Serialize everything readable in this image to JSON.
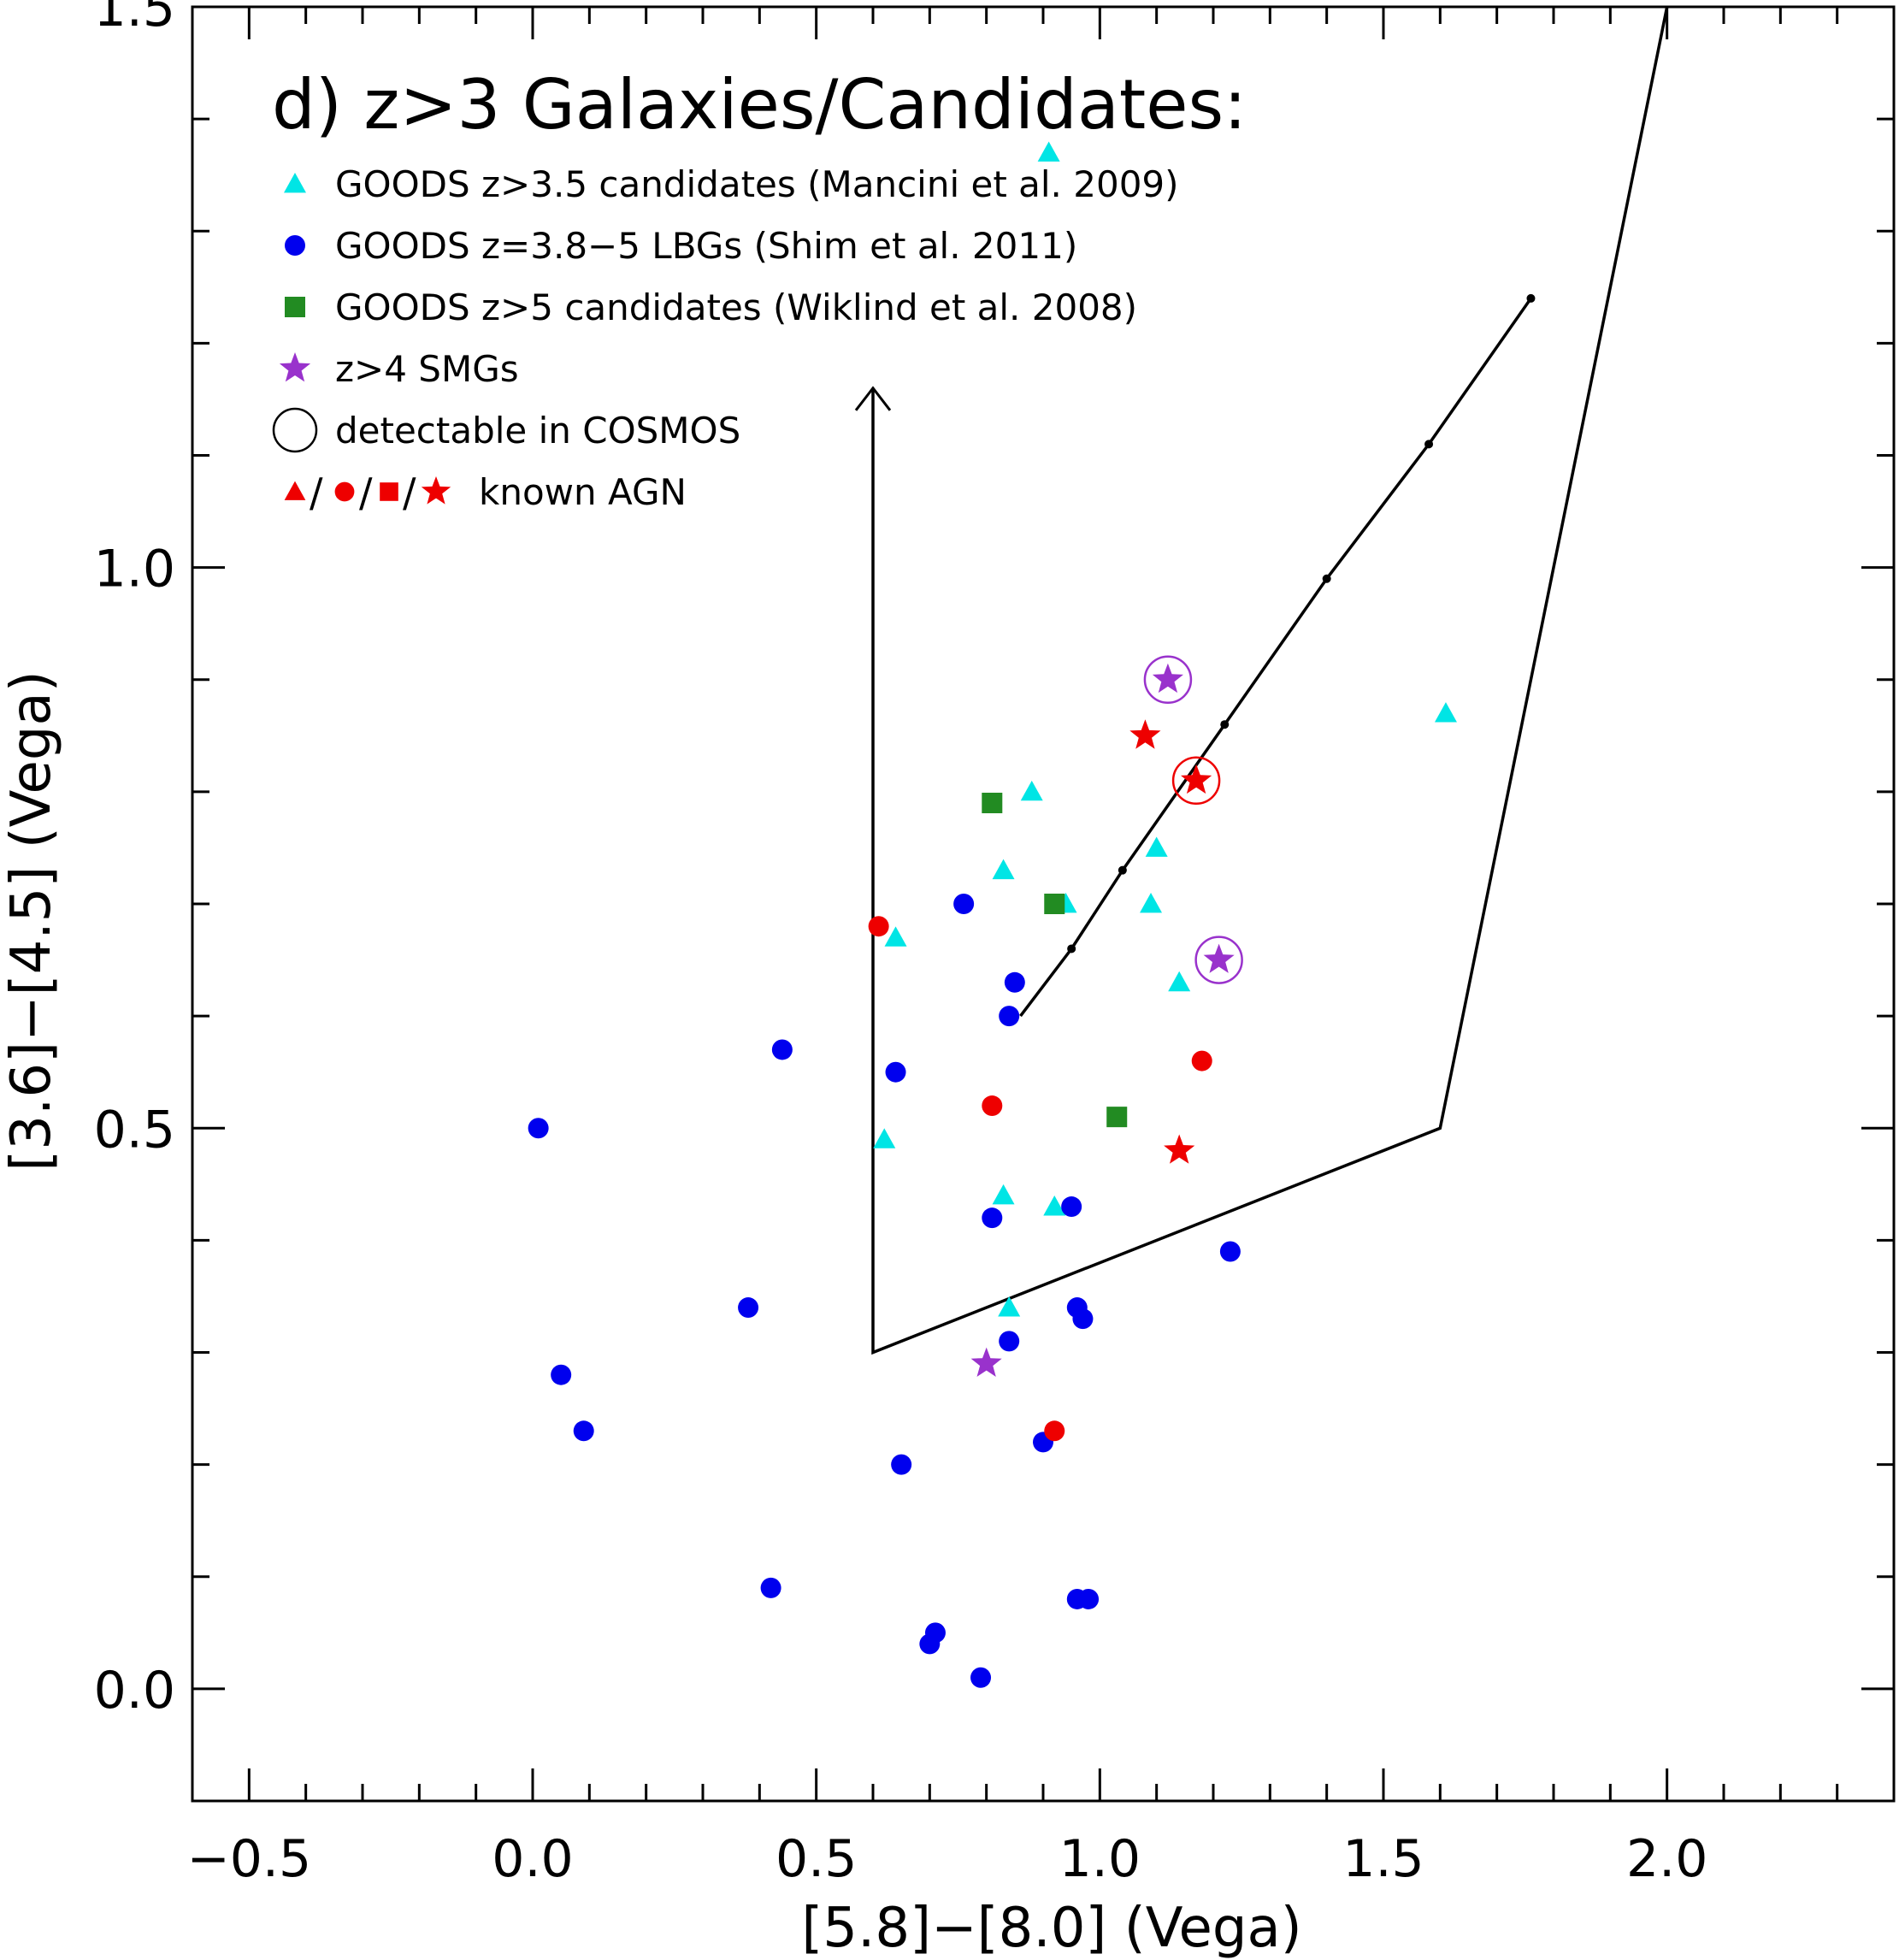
{
  "chart_data": {
    "type": "scatter",
    "title": "d) z>3 Galaxies/Candidates:",
    "xlabel": "[5.8]−[8.0] (Vega)",
    "ylabel": "[3.6]−[4.5] (Vega)",
    "xlim": [
      -0.6,
      2.4
    ],
    "ylim": [
      -0.1,
      1.5
    ],
    "xticks": [
      -0.5,
      0.0,
      0.5,
      1.0,
      1.5,
      2.0
    ],
    "xtick_labels": [
      "−0.5",
      "0.0",
      "0.5",
      "1.0",
      "1.5",
      "2.0"
    ],
    "yticks": [
      0.0,
      0.5,
      1.0,
      1.5
    ],
    "ytick_labels": [
      "0.0",
      "0.5",
      "1.0",
      "1.5"
    ],
    "x_minor_step": 0.1,
    "y_minor_step": 0.1,
    "grid": false,
    "legend_position": "top-left",
    "legend": [
      {
        "label": "GOODS z>3.5 candidates (Mancini et al. 2009)",
        "marker": "triangle",
        "color": "#00e5e5"
      },
      {
        "label": "GOODS z=3.8−5 LBGs (Shim et al. 2011)",
        "marker": "circle",
        "color": "#0000ee"
      },
      {
        "label": "GOODS z>5 candidates (Wiklind et al. 2008)",
        "marker": "square",
        "color": "#228b22"
      },
      {
        "label": "z>4 SMGs",
        "marker": "star",
        "color": "#9932cc"
      },
      {
        "label": "detectable in COSMOS",
        "marker": "open-circle",
        "color": "#000000"
      },
      {
        "label": "known AGN",
        "marker": "agn-set",
        "color": "#ee0000"
      }
    ],
    "series": [
      {
        "name": "GOODS z>3.5 candidates (Mancini et al. 2009)",
        "marker": "triangle",
        "color": "#00e5e5",
        "points": [
          {
            "x": 0.91,
            "y": 1.37
          },
          {
            "x": 1.61,
            "y": 0.87
          },
          {
            "x": 0.88,
            "y": 0.8
          },
          {
            "x": 0.83,
            "y": 0.73
          },
          {
            "x": 1.1,
            "y": 0.75
          },
          {
            "x": 0.94,
            "y": 0.7
          },
          {
            "x": 1.09,
            "y": 0.7
          },
          {
            "x": 0.64,
            "y": 0.67
          },
          {
            "x": 1.14,
            "y": 0.63
          },
          {
            "x": 0.62,
            "y": 0.49
          },
          {
            "x": 0.83,
            "y": 0.44
          },
          {
            "x": 0.92,
            "y": 0.43
          },
          {
            "x": 0.84,
            "y": 0.34
          }
        ]
      },
      {
        "name": "GOODS z=3.8−5 LBGs (Shim et al. 2011)",
        "marker": "circle",
        "color": "#0000ee",
        "points": [
          {
            "x": 0.76,
            "y": 0.7
          },
          {
            "x": 0.85,
            "y": 0.63
          },
          {
            "x": 0.84,
            "y": 0.6
          },
          {
            "x": 0.44,
            "y": 0.57
          },
          {
            "x": 0.64,
            "y": 0.55
          },
          {
            "x": 0.01,
            "y": 0.5
          },
          {
            "x": 0.95,
            "y": 0.43
          },
          {
            "x": 0.81,
            "y": 0.42
          },
          {
            "x": 1.23,
            "y": 0.39
          },
          {
            "x": 0.38,
            "y": 0.34
          },
          {
            "x": 0.96,
            "y": 0.34
          },
          {
            "x": 0.97,
            "y": 0.33
          },
          {
            "x": 0.84,
            "y": 0.31
          },
          {
            "x": 0.05,
            "y": 0.28
          },
          {
            "x": 0.09,
            "y": 0.23
          },
          {
            "x": 0.9,
            "y": 0.22
          },
          {
            "x": 0.65,
            "y": 0.2
          },
          {
            "x": 0.42,
            "y": 0.09
          },
          {
            "x": 0.96,
            "y": 0.08
          },
          {
            "x": 0.98,
            "y": 0.08
          },
          {
            "x": 0.71,
            "y": 0.05
          },
          {
            "x": 0.7,
            "y": 0.04
          },
          {
            "x": 0.79,
            "y": 0.01
          }
        ]
      },
      {
        "name": "GOODS z>5 candidates (Wiklind et al. 2008)",
        "marker": "square",
        "color": "#228b22",
        "points": [
          {
            "x": 0.81,
            "y": 0.79
          },
          {
            "x": 0.92,
            "y": 0.7
          },
          {
            "x": 1.03,
            "y": 0.51
          }
        ]
      },
      {
        "name": "z>4 SMGs",
        "marker": "star",
        "color": "#9932cc",
        "points": [
          {
            "x": 1.12,
            "y": 0.9,
            "detectable": true
          },
          {
            "x": 1.21,
            "y": 0.65,
            "detectable": true
          },
          {
            "x": 0.8,
            "y": 0.29,
            "detectable": false
          }
        ]
      },
      {
        "name": "known AGN (circles)",
        "marker": "circle",
        "color": "#ee0000",
        "points": [
          {
            "x": 0.61,
            "y": 0.68
          },
          {
            "x": 1.18,
            "y": 0.56
          },
          {
            "x": 0.81,
            "y": 0.52
          },
          {
            "x": 0.92,
            "y": 0.23
          }
        ]
      },
      {
        "name": "known AGN (stars)",
        "marker": "star",
        "color": "#ee0000",
        "points": [
          {
            "x": 1.08,
            "y": 0.85,
            "detectable": false
          },
          {
            "x": 1.17,
            "y": 0.81,
            "detectable": true
          },
          {
            "x": 1.14,
            "y": 0.48,
            "detectable": false
          }
        ]
      }
    ],
    "annotations": {
      "wedge_polyline": [
        {
          "x": 0.6,
          "y": 1.16
        },
        {
          "x": 0.6,
          "y": 0.3
        },
        {
          "x": 1.6,
          "y": 0.5
        },
        {
          "x": 2.0,
          "y": 1.5
        }
      ],
      "wedge_arrow_head": {
        "x": 0.6,
        "y": 1.16
      },
      "track_line": [
        {
          "x": 0.86,
          "y": 0.6
        },
        {
          "x": 0.95,
          "y": 0.66
        },
        {
          "x": 1.04,
          "y": 0.73
        },
        {
          "x": 1.22,
          "y": 0.86
        },
        {
          "x": 1.4,
          "y": 0.99
        },
        {
          "x": 1.58,
          "y": 1.11
        },
        {
          "x": 1.76,
          "y": 1.24
        }
      ]
    }
  }
}
